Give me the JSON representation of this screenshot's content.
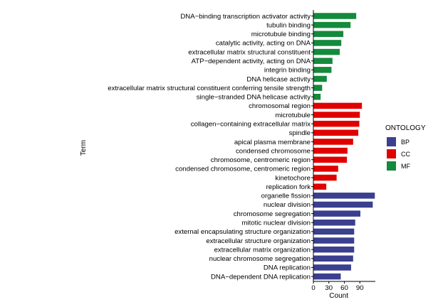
{
  "chart_data": {
    "type": "bar",
    "orientation": "horizontal",
    "title": "",
    "xlabel": "Count",
    "ylabel": "Term",
    "xlim": [
      0,
      120
    ],
    "xticks": [
      0,
      30,
      60,
      90
    ],
    "grid": false,
    "legend": {
      "title": "ONTOLOGY",
      "position": "right",
      "entries": [
        {
          "key": "BP",
          "label": "BP",
          "color": "#3b3f8f"
        },
        {
          "key": "CC",
          "label": "CC",
          "color": "#e00000"
        },
        {
          "key": "MF",
          "label": "MF",
          "color": "#148a3c"
        }
      ]
    },
    "categories": [
      {
        "term": "DNA−binding transcription activator activity",
        "group": "MF",
        "value": 83
      },
      {
        "term": "tubulin binding",
        "group": "MF",
        "value": 72
      },
      {
        "term": "microtubule binding",
        "group": "MF",
        "value": 58
      },
      {
        "term": "catalytic activity, acting on DNA",
        "group": "MF",
        "value": 54
      },
      {
        "term": "extracellular matrix structural constituent",
        "group": "MF",
        "value": 51
      },
      {
        "term": "ATP−dependent activity, acting on DNA",
        "group": "MF",
        "value": 37
      },
      {
        "term": "integrin binding",
        "group": "MF",
        "value": 35
      },
      {
        "term": "DNA helicase activity",
        "group": "MF",
        "value": 26
      },
      {
        "term": "extracellular matrix structural constituent conferring tensile strength",
        "group": "MF",
        "value": 17
      },
      {
        "term": "single−stranded DNA helicase activity",
        "group": "MF",
        "value": 14
      },
      {
        "term": "chromosomal region",
        "group": "CC",
        "value": 94
      },
      {
        "term": "microtubule",
        "group": "CC",
        "value": 90
      },
      {
        "term": "collagen−containing extracellular matrix",
        "group": "CC",
        "value": 89
      },
      {
        "term": "spindle",
        "group": "CC",
        "value": 87
      },
      {
        "term": "apical plasma membrane",
        "group": "CC",
        "value": 77
      },
      {
        "term": "condensed chromosome",
        "group": "CC",
        "value": 66
      },
      {
        "term": "chromosome, centromeric region",
        "group": "CC",
        "value": 65
      },
      {
        "term": "condensed chromosome, centromeric region",
        "group": "CC",
        "value": 48
      },
      {
        "term": "kinetochore",
        "group": "CC",
        "value": 45
      },
      {
        "term": "replication fork",
        "group": "CC",
        "value": 25
      },
      {
        "term": "organelle fission",
        "group": "BP",
        "value": 119
      },
      {
        "term": "nuclear division",
        "group": "BP",
        "value": 115
      },
      {
        "term": "chromosome segregation",
        "group": "BP",
        "value": 91
      },
      {
        "term": "mitotic nuclear division",
        "group": "BP",
        "value": 81
      },
      {
        "term": "external encapsulating structure organization",
        "group": "BP",
        "value": 79
      },
      {
        "term": "extracellular structure organization",
        "group": "BP",
        "value": 79
      },
      {
        "term": "extracellular matrix organization",
        "group": "BP",
        "value": 79
      },
      {
        "term": "nuclear chromosome segregation",
        "group": "BP",
        "value": 77
      },
      {
        "term": "DNA replication",
        "group": "BP",
        "value": 73
      },
      {
        "term": "DNA−dependent DNA replication",
        "group": "BP",
        "value": 53
      }
    ]
  }
}
